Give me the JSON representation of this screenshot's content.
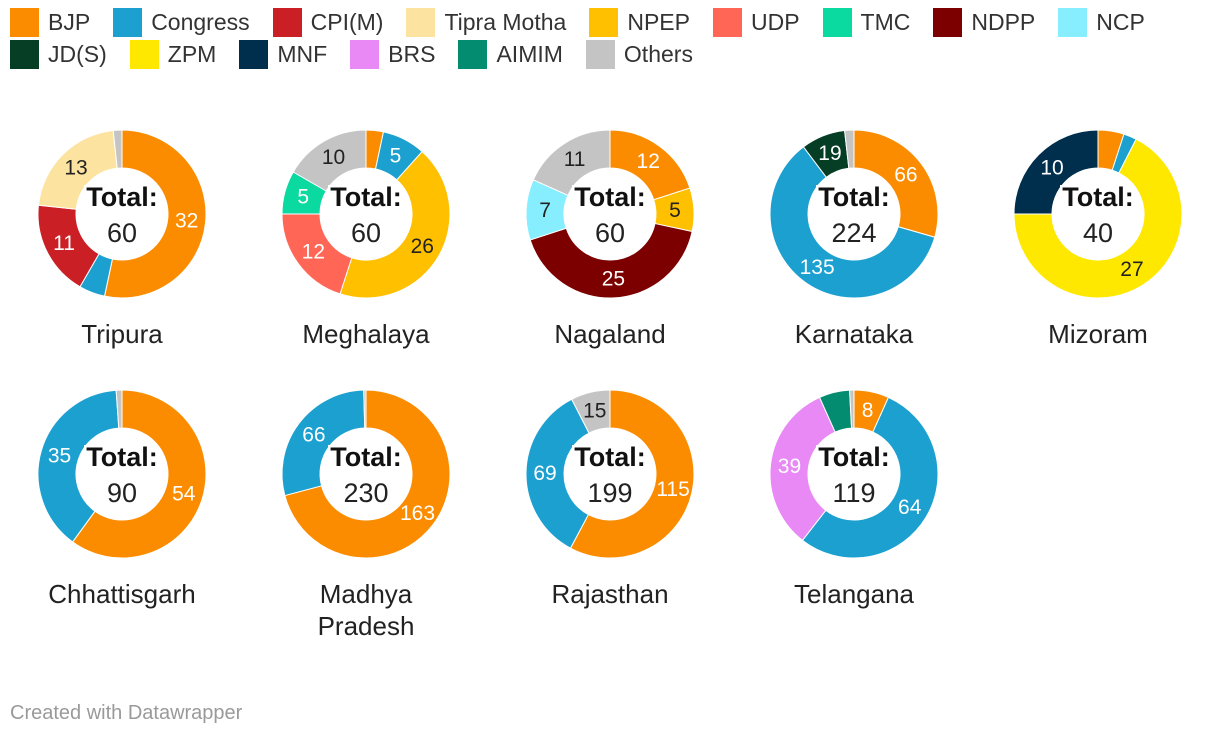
{
  "colors": {
    "BJP": "#fb8c00",
    "Congress": "#1ba0d0",
    "CPI(M)": "#c91f25",
    "Tipra Motha": "#fde3a0",
    "NPEP": "#ffc000",
    "UDP": "#ff6655",
    "TMC": "#0ad9a0",
    "NDPP": "#7d0000",
    "NCP": "#86eeff",
    "JD(S)": "#053d25",
    "ZPM": "#ffe800",
    "MNF": "#002e4d",
    "BRS": "#e889f6",
    "AIMIM": "#048c70",
    "Others": "#c4c4c4"
  },
  "legend": [
    "BJP",
    "Congress",
    "CPI(M)",
    "Tipra Motha",
    "NPEP",
    "UDP",
    "TMC",
    "NDPP",
    "NCP",
    "JD(S)",
    "ZPM",
    "MNF",
    "BRS",
    "AIMIM",
    "Others"
  ],
  "total_text": "Total:",
  "credit": "Created with Datawrapper",
  "chart_data": [
    {
      "type": "pie",
      "title": "Tripura",
      "total": "60",
      "slices": [
        {
          "party": "BJP",
          "value": 32
        },
        {
          "party": "Congress",
          "value": 3
        },
        {
          "party": "CPI(M)",
          "value": 11
        },
        {
          "party": "Tipra Motha",
          "value": 13
        },
        {
          "party": "Others",
          "value": 1
        }
      ]
    },
    {
      "type": "pie",
      "title": "Meghalaya",
      "total": "60",
      "slices": [
        {
          "party": "BJP",
          "value": 2
        },
        {
          "party": "Congress",
          "value": 5
        },
        {
          "party": "NPEP",
          "value": 26
        },
        {
          "party": "UDP",
          "value": 12
        },
        {
          "party": "TMC",
          "value": 5
        },
        {
          "party": "Others",
          "value": 10
        }
      ]
    },
    {
      "type": "pie",
      "title": "Nagaland",
      "total": "60",
      "slices": [
        {
          "party": "BJP",
          "value": 12
        },
        {
          "party": "NPEP",
          "value": 5
        },
        {
          "party": "NDPP",
          "value": 25
        },
        {
          "party": "NCP",
          "value": 7
        },
        {
          "party": "Others",
          "value": 11
        }
      ]
    },
    {
      "type": "pie",
      "title": "Karnataka",
      "total": "224",
      "slices": [
        {
          "party": "BJP",
          "value": 66
        },
        {
          "party": "Congress",
          "value": 135
        },
        {
          "party": "JD(S)",
          "value": 19
        },
        {
          "party": "Others",
          "value": 4
        }
      ]
    },
    {
      "type": "pie",
      "title": "Mizoram",
      "total": "40",
      "slices": [
        {
          "party": "BJP",
          "value": 2
        },
        {
          "party": "Congress",
          "value": 1
        },
        {
          "party": "ZPM",
          "value": 27
        },
        {
          "party": "MNF",
          "value": 10
        }
      ]
    },
    {
      "type": "pie",
      "title": "Chhattisgarh",
      "total": "90",
      "slices": [
        {
          "party": "BJP",
          "value": 54
        },
        {
          "party": "Congress",
          "value": 35
        },
        {
          "party": "Others",
          "value": 1
        }
      ]
    },
    {
      "type": "pie",
      "title": "Madhya Pradesh",
      "total": "230",
      "slices": [
        {
          "party": "BJP",
          "value": 163
        },
        {
          "party": "Congress",
          "value": 66
        },
        {
          "party": "Others",
          "value": 1
        }
      ]
    },
    {
      "type": "pie",
      "title": "Rajasthan",
      "total": "199",
      "slices": [
        {
          "party": "BJP",
          "value": 115
        },
        {
          "party": "Congress",
          "value": 69
        },
        {
          "party": "Others",
          "value": 15
        }
      ]
    },
    {
      "type": "pie",
      "title": "Telangana",
      "total": "119",
      "slices": [
        {
          "party": "BJP",
          "value": 8
        },
        {
          "party": "Congress",
          "value": 64
        },
        {
          "party": "BRS",
          "value": 39
        },
        {
          "party": "AIMIM",
          "value": 7
        },
        {
          "party": "Others",
          "value": 1
        }
      ]
    }
  ]
}
